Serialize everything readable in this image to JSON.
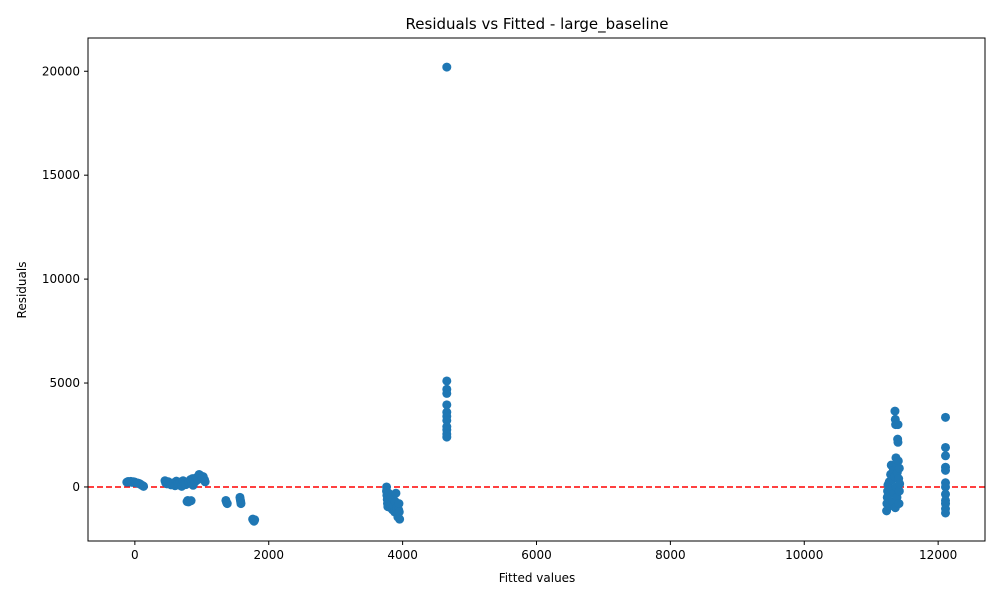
{
  "chart_data": {
    "type": "scatter",
    "title": "Residuals vs Fitted - large_baseline",
    "xlabel": "Fitted values",
    "ylabel": "Residuals",
    "xlim": [
      -700,
      12700
    ],
    "ylim": [
      -2600,
      21600
    ],
    "xticks": [
      0,
      2000,
      4000,
      6000,
      8000,
      10000,
      12000
    ],
    "yticks": [
      0,
      5000,
      10000,
      15000,
      20000
    ],
    "grid": false,
    "point_color": "#1f77b4",
    "reference_line": {
      "y": 0,
      "color": "#ff0000",
      "style": "dashed"
    },
    "points": [
      {
        "x": -120,
        "y": 230
      },
      {
        "x": -100,
        "y": 260
      },
      {
        "x": -80,
        "y": 240
      },
      {
        "x": -60,
        "y": 270
      },
      {
        "x": -40,
        "y": 220
      },
      {
        "x": -20,
        "y": 250
      },
      {
        "x": 0,
        "y": 230
      },
      {
        "x": 20,
        "y": 200
      },
      {
        "x": 40,
        "y": 190
      },
      {
        "x": 60,
        "y": 170
      },
      {
        "x": 80,
        "y": 140
      },
      {
        "x": 100,
        "y": 90
      },
      {
        "x": 120,
        "y": 60
      },
      {
        "x": 130,
        "y": 30
      },
      {
        "x": 450,
        "y": 300
      },
      {
        "x": 460,
        "y": 200
      },
      {
        "x": 480,
        "y": 150
      },
      {
        "x": 500,
        "y": 250
      },
      {
        "x": 520,
        "y": 180
      },
      {
        "x": 540,
        "y": 100
      },
      {
        "x": 560,
        "y": 120
      },
      {
        "x": 580,
        "y": 200
      },
      {
        "x": 600,
        "y": 60
      },
      {
        "x": 620,
        "y": 280
      },
      {
        "x": 640,
        "y": 150
      },
      {
        "x": 660,
        "y": 90
      },
      {
        "x": 680,
        "y": 240
      },
      {
        "x": 700,
        "y": 30
      },
      {
        "x": 720,
        "y": 300
      },
      {
        "x": 740,
        "y": 170
      },
      {
        "x": 760,
        "y": 110
      },
      {
        "x": 780,
        "y": -700
      },
      {
        "x": 790,
        "y": -650
      },
      {
        "x": 800,
        "y": -720
      },
      {
        "x": 810,
        "y": 250
      },
      {
        "x": 820,
        "y": -680
      },
      {
        "x": 830,
        "y": 350
      },
      {
        "x": 840,
        "y": -660
      },
      {
        "x": 850,
        "y": 200
      },
      {
        "x": 860,
        "y": 400
      },
      {
        "x": 870,
        "y": 80
      },
      {
        "x": 880,
        "y": 300
      },
      {
        "x": 900,
        "y": 250
      },
      {
        "x": 920,
        "y": 450
      },
      {
        "x": 940,
        "y": 350
      },
      {
        "x": 960,
        "y": 600
      },
      {
        "x": 980,
        "y": 550
      },
      {
        "x": 1000,
        "y": 450
      },
      {
        "x": 1020,
        "y": 500
      },
      {
        "x": 1040,
        "y": 350
      },
      {
        "x": 1050,
        "y": 250
      },
      {
        "x": 1360,
        "y": -650
      },
      {
        "x": 1370,
        "y": -750
      },
      {
        "x": 1380,
        "y": -800
      },
      {
        "x": 1570,
        "y": -500
      },
      {
        "x": 1575,
        "y": -600
      },
      {
        "x": 1580,
        "y": -700
      },
      {
        "x": 1585,
        "y": -800
      },
      {
        "x": 1760,
        "y": -1550
      },
      {
        "x": 1770,
        "y": -1600
      },
      {
        "x": 1780,
        "y": -1650
      },
      {
        "x": 1790,
        "y": -1580
      },
      {
        "x": 3760,
        "y": 0
      },
      {
        "x": 3760,
        "y": -200
      },
      {
        "x": 3765,
        "y": -400
      },
      {
        "x": 3770,
        "y": -600
      },
      {
        "x": 3775,
        "y": -800
      },
      {
        "x": 3780,
        "y": -950
      },
      {
        "x": 3790,
        "y": -300
      },
      {
        "x": 3800,
        "y": -700
      },
      {
        "x": 3810,
        "y": -900
      },
      {
        "x": 3820,
        "y": -1000
      },
      {
        "x": 3830,
        "y": -500
      },
      {
        "x": 3840,
        "y": -800
      },
      {
        "x": 3850,
        "y": -1100
      },
      {
        "x": 3860,
        "y": -600
      },
      {
        "x": 3870,
        "y": -900
      },
      {
        "x": 3880,
        "y": -1200
      },
      {
        "x": 3890,
        "y": -700
      },
      {
        "x": 3900,
        "y": -300
      },
      {
        "x": 3910,
        "y": -1000
      },
      {
        "x": 3920,
        "y": -1300
      },
      {
        "x": 3930,
        "y": -1450
      },
      {
        "x": 3940,
        "y": -1100
      },
      {
        "x": 3945,
        "y": -800
      },
      {
        "x": 3950,
        "y": -1200
      },
      {
        "x": 3955,
        "y": -1550
      },
      {
        "x": 4660,
        "y": 20200
      },
      {
        "x": 4660,
        "y": 5100
      },
      {
        "x": 4660,
        "y": 4700
      },
      {
        "x": 4660,
        "y": 4500
      },
      {
        "x": 4660,
        "y": 3950
      },
      {
        "x": 4660,
        "y": 3600
      },
      {
        "x": 4660,
        "y": 3400
      },
      {
        "x": 4660,
        "y": 3200
      },
      {
        "x": 4660,
        "y": 2900
      },
      {
        "x": 4660,
        "y": 2750
      },
      {
        "x": 4660,
        "y": 2550
      },
      {
        "x": 4660,
        "y": 2400
      },
      {
        "x": 11230,
        "y": -1150
      },
      {
        "x": 11235,
        "y": -800
      },
      {
        "x": 11240,
        "y": -500
      },
      {
        "x": 11245,
        "y": -200
      },
      {
        "x": 11250,
        "y": 100
      },
      {
        "x": 11255,
        "y": -650
      },
      {
        "x": 11260,
        "y": -350
      },
      {
        "x": 11270,
        "y": 250
      },
      {
        "x": 11280,
        "y": -900
      },
      {
        "x": 11290,
        "y": 600
      },
      {
        "x": 11300,
        "y": -100
      },
      {
        "x": 11300,
        "y": 1050
      },
      {
        "x": 11310,
        "y": 350
      },
      {
        "x": 11320,
        "y": -700
      },
      {
        "x": 11330,
        "y": 800
      },
      {
        "x": 11340,
        "y": -300
      },
      {
        "x": 11350,
        "y": 500
      },
      {
        "x": 11355,
        "y": 3650
      },
      {
        "x": 11360,
        "y": 3250
      },
      {
        "x": 11360,
        "y": -1000
      },
      {
        "x": 11365,
        "y": 3000
      },
      {
        "x": 11370,
        "y": 1400
      },
      {
        "x": 11375,
        "y": 0
      },
      {
        "x": 11380,
        "y": 1100
      },
      {
        "x": 11385,
        "y": -500
      },
      {
        "x": 11390,
        "y": 700
      },
      {
        "x": 11395,
        "y": 2300
      },
      {
        "x": 11400,
        "y": 2150
      },
      {
        "x": 11400,
        "y": 3000
      },
      {
        "x": 11405,
        "y": 1250
      },
      {
        "x": 11410,
        "y": 400
      },
      {
        "x": 11415,
        "y": -800
      },
      {
        "x": 11420,
        "y": 900
      },
      {
        "x": 11420,
        "y": -200
      },
      {
        "x": 11425,
        "y": 150
      },
      {
        "x": 12110,
        "y": 3350
      },
      {
        "x": 12110,
        "y": 1900
      },
      {
        "x": 12110,
        "y": 1500
      },
      {
        "x": 12110,
        "y": 950
      },
      {
        "x": 12110,
        "y": 800
      },
      {
        "x": 12110,
        "y": 200
      },
      {
        "x": 12110,
        "y": 0
      },
      {
        "x": 12110,
        "y": -350
      },
      {
        "x": 12110,
        "y": -650
      },
      {
        "x": 12110,
        "y": -800
      },
      {
        "x": 12110,
        "y": -1050
      },
      {
        "x": 12110,
        "y": -1250
      }
    ]
  }
}
